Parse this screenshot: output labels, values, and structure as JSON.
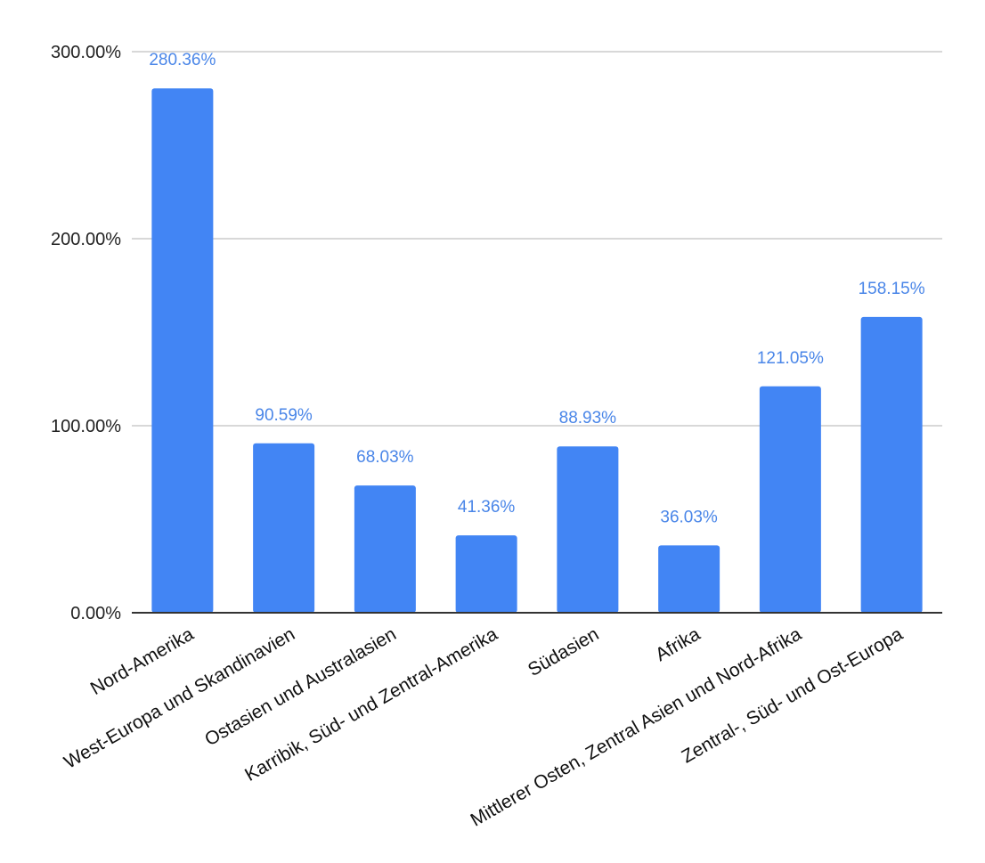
{
  "chart_data": {
    "type": "bar",
    "categories": [
      "Nord-Amerika",
      "West-Europa und Skandinavien",
      "Ostasien und Australasien",
      "Karribik, Süd- und Zentral-Amerika",
      "Südasien",
      "Afrika",
      "Mittlerer Osten, Zentral Asien und Nord-Afrika",
      "Zentral-, Süd- und Ost-Europa"
    ],
    "values": [
      280.36,
      90.59,
      68.03,
      41.36,
      88.93,
      36.03,
      121.05,
      158.15
    ],
    "data_labels": [
      "280.36%",
      "90.59%",
      "68.03%",
      "41.36%",
      "88.93%",
      "36.03%",
      "121.05%",
      "158.15%"
    ],
    "y_ticks": [
      0,
      100,
      200,
      300
    ],
    "y_tick_labels": [
      "0.00%",
      "100.00%",
      "200.00%",
      "300.00%"
    ],
    "ylim": [
      0,
      300
    ],
    "grid": true,
    "legend": "none",
    "colors": {
      "bar": "#4285f4",
      "data_label": "#4a86e8",
      "gridline": "#cccccc",
      "axis": "#333333"
    }
  }
}
